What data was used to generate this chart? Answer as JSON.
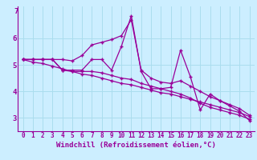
{
  "xlabel": "Windchill (Refroidissement éolien,°C)",
  "bg_color": "#cceeff",
  "line_color": "#990099",
  "grid_color": "#aaddee",
  "x_data": [
    0,
    1,
    2,
    3,
    4,
    5,
    6,
    7,
    8,
    9,
    10,
    11,
    12,
    13,
    14,
    15,
    16,
    17,
    18,
    19,
    20,
    21,
    22,
    23
  ],
  "y_main": [
    5.2,
    5.2,
    5.2,
    5.2,
    4.8,
    4.8,
    4.8,
    5.2,
    5.2,
    4.8,
    5.7,
    6.85,
    4.75,
    4.1,
    4.1,
    4.15,
    5.55,
    4.55,
    3.3,
    3.9,
    3.65,
    3.45,
    3.25,
    2.9
  ],
  "y_upper": [
    5.2,
    5.2,
    5.2,
    5.2,
    5.2,
    5.15,
    5.35,
    5.75,
    5.85,
    5.95,
    6.1,
    6.7,
    4.8,
    4.5,
    4.35,
    4.3,
    4.4,
    4.2,
    4.0,
    3.8,
    3.65,
    3.5,
    3.35,
    3.1
  ],
  "y_lower": [
    5.2,
    5.2,
    5.2,
    5.2,
    4.8,
    4.75,
    4.75,
    4.75,
    4.7,
    4.6,
    4.5,
    4.45,
    4.3,
    4.2,
    4.1,
    4.0,
    3.9,
    3.75,
    3.55,
    3.4,
    3.3,
    3.2,
    3.1,
    2.95
  ],
  "y_trend": [
    5.2,
    5.1,
    5.05,
    4.95,
    4.85,
    4.75,
    4.65,
    4.6,
    4.5,
    4.4,
    4.3,
    4.25,
    4.15,
    4.05,
    3.95,
    3.9,
    3.8,
    3.7,
    3.6,
    3.5,
    3.4,
    3.3,
    3.2,
    3.05
  ],
  "xlim": [
    -0.5,
    23.5
  ],
  "ylim": [
    2.5,
    7.2
  ],
  "yticks": [
    3,
    4,
    5,
    6
  ],
  "xtick_labels": [
    "0",
    "1",
    "2",
    "3",
    "4",
    "5",
    "6",
    "7",
    "8",
    "9",
    "10",
    "11",
    "12",
    "13",
    "14",
    "15",
    "16",
    "17",
    "18",
    "19",
    "20",
    "21",
    "22",
    "23"
  ],
  "tick_fontsize": 5.5,
  "label_fontsize": 6.5
}
